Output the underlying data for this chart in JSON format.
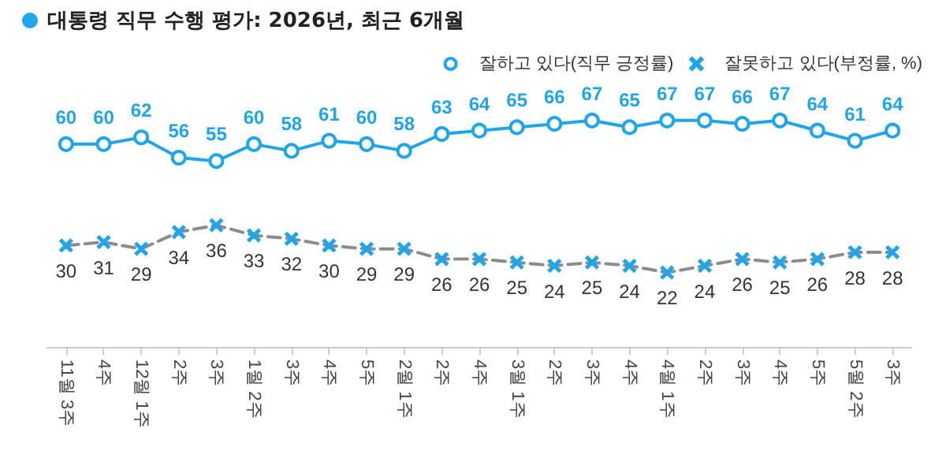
{
  "chart_data": {
    "type": "line",
    "title": "대통령 직무 수행 평가: 2026년, 최근 6개월",
    "categories": [
      "11월 3주",
      "4주",
      "12월 1주",
      "2주",
      "3주",
      "1월 2주",
      "3주",
      "4주",
      "5주",
      "2월 1주",
      "2주",
      "4주",
      "3월 1주",
      "2주",
      "3주",
      "4주",
      "4월 1주",
      "2주",
      "3주",
      "4주",
      "5주",
      "5월 2주",
      "3주"
    ],
    "series": [
      {
        "name": "잘하고 있다(직무 긍정률)",
        "color": "#1ea5ec",
        "marker": "circle",
        "line_style": "solid",
        "values": [
          60,
          60,
          62,
          56,
          55,
          60,
          58,
          61,
          60,
          58,
          63,
          64,
          65,
          66,
          67,
          65,
          67,
          67,
          66,
          67,
          64,
          61,
          64
        ]
      },
      {
        "name": "잘못하고 있다(부정률, %)",
        "color": "#8c8c8c",
        "marker": "cross",
        "line_style": "dashed",
        "values": [
          30,
          31,
          29,
          34,
          36,
          33,
          32,
          30,
          29,
          29,
          26,
          26,
          25,
          24,
          25,
          24,
          22,
          24,
          26,
          25,
          26,
          28,
          28
        ]
      }
    ],
    "data_labels": true,
    "legend": "top right",
    "grid": false
  }
}
